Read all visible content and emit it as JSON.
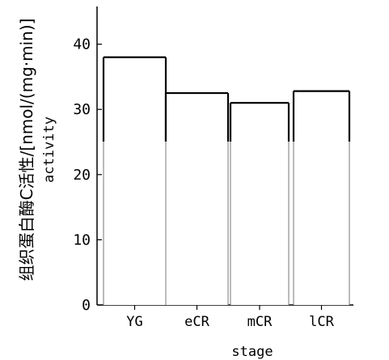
{
  "chart_data": {
    "type": "bar",
    "categories": [
      "YG",
      "eCR",
      "mCR",
      "lCR"
    ],
    "values": [
      38,
      32.5,
      31,
      32.8
    ],
    "xlabel": "stage",
    "ylabel": "组织蛋白酶C活性/[nmol/(mg·min)]",
    "ylabel_en": "activity",
    "ylim": [
      0,
      45
    ],
    "yticks": [
      0,
      10,
      20,
      30,
      40
    ],
    "grid": false,
    "legend": "none",
    "colors": {
      "bar_fill": "#ffffff",
      "bar_edge": "#000000",
      "axis": "#000000"
    }
  }
}
